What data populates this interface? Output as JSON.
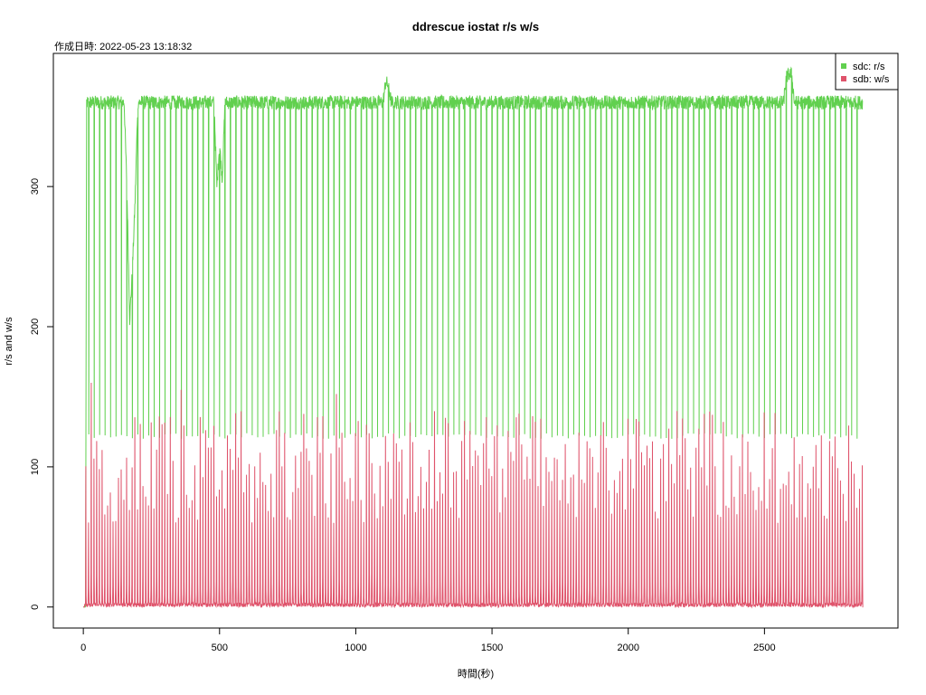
{
  "chart_data": {
    "type": "line",
    "title": "ddrescue iostat r/s w/s",
    "subtitle": "作成日時: 2022-05-23 13:18:32",
    "xlabel": "時間(秒)",
    "ylabel": "r/s and w/s",
    "xlim": [
      -110,
      2990
    ],
    "ylim": [
      -15,
      395
    ],
    "x_ticks": [
      0,
      500,
      1000,
      1500,
      2000,
      2500
    ],
    "y_ticks": [
      0,
      100,
      200,
      300
    ],
    "legend_position": "top-right",
    "grid": false,
    "series": [
      {
        "name": "sdc: r/s",
        "color": "#61D04F",
        "description": "Read rate mostly plateaus around 355-365 with periodic sharp drops to ~120 roughly every 20 s; near-zero at start (x<8); dip to ~205-290 around x=160-190; dip to ~300-335 around x=480-510; spike to ~375 around x=1110; spike to ~380 around x=2580-2600; ends near x=2860",
        "x": [
          0,
          8,
          12,
          150,
          160,
          170,
          180,
          190,
          200,
          480,
          490,
          500,
          510,
          520,
          1100,
          1110,
          1120,
          1130,
          2570,
          2580,
          2590,
          2600,
          2610,
          2860
        ],
        "values": [
          0,
          0,
          360,
          360,
          300,
          205,
          240,
          290,
          360,
          360,
          300,
          330,
          305,
          360,
          360,
          375,
          372,
          360,
          360,
          378,
          380,
          380,
          360,
          360
        ],
        "dip_period": 20,
        "dip_min": 120,
        "plateau_level": 360
      },
      {
        "name": "sdb: w/s",
        "color": "#DF536B",
        "description": "Write rate bursty: repeated spikes from 0 up to ~60-160 roughly every 10 s across the whole run (x≈5 to 2860); largest peaks ~160 near x=25, ~155 near x=360, ~152 near x=930",
        "x": [
          5,
          25,
          360,
          930,
          2860
        ],
        "values": [
          0,
          160,
          155,
          152,
          0
        ],
        "spike_period": 10,
        "spike_min": 60,
        "spike_max": 160
      }
    ]
  }
}
